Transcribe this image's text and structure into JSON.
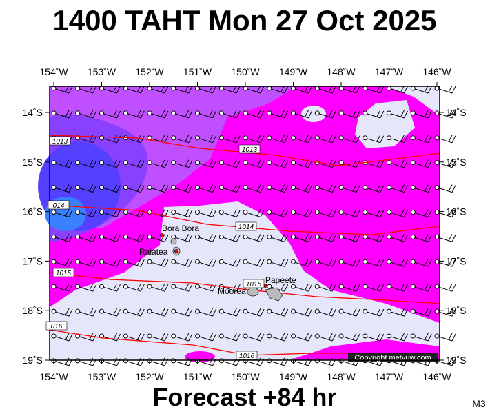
{
  "title": "1400 TAHT Mon 27 Oct 2025",
  "footer": "Forecast +84 hr",
  "code": "M3",
  "copyright": "Copyright metvuw.com",
  "lon_labels": [
    "154˚W",
    "153˚W",
    "152˚W",
    "151˚W",
    "150˚W",
    "149˚W",
    "148˚W",
    "147˚W",
    "146˚W"
  ],
  "lat_labels": [
    "14˚S",
    "15˚S",
    "16˚S",
    "17˚S",
    "18˚S",
    "19˚S"
  ],
  "isobar_labels": [
    "1013",
    "1013",
    "014",
    "1014",
    "1015",
    "016",
    "1016",
    "1015"
  ],
  "places": [
    "Bora Bora",
    "Raiatea",
    "Papeete",
    "Moorea"
  ]
}
